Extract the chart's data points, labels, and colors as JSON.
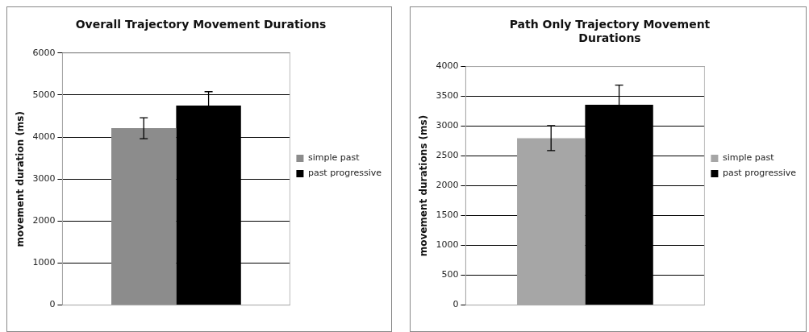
{
  "chart_data": [
    {
      "type": "bar",
      "title": "Overall Trajectory Movement Durations",
      "ylabel": "movement duration (ms)",
      "categories": [
        null
      ],
      "ylim": [
        0,
        6000
      ],
      "yticks": [
        0,
        1000,
        2000,
        3000,
        4000,
        5000,
        6000
      ],
      "grid": "y",
      "legend": "right",
      "series": [
        {
          "name": "simple past",
          "color": "#8c8c8c",
          "values": [
            4210
          ],
          "errors": [
            250
          ]
        },
        {
          "name": "past progressive",
          "color": "#000000",
          "values": [
            4750
          ],
          "errors": [
            330
          ]
        }
      ]
    },
    {
      "type": "bar",
      "title": "Path Only Trajectory Movement Durations",
      "ylabel": "movement durations (ms)",
      "categories": [
        null
      ],
      "ylim": [
        0,
        4000
      ],
      "yticks": [
        0,
        500,
        1000,
        1500,
        2000,
        2500,
        3000,
        3500,
        4000
      ],
      "grid": "y",
      "legend": "right",
      "series": [
        {
          "name": "simple past",
          "color": "#a6a6a6",
          "values": [
            2800
          ],
          "errors": [
            210
          ]
        },
        {
          "name": "past progressive",
          "color": "#000000",
          "values": [
            3360
          ],
          "errors": [
            330
          ]
        }
      ]
    }
  ]
}
